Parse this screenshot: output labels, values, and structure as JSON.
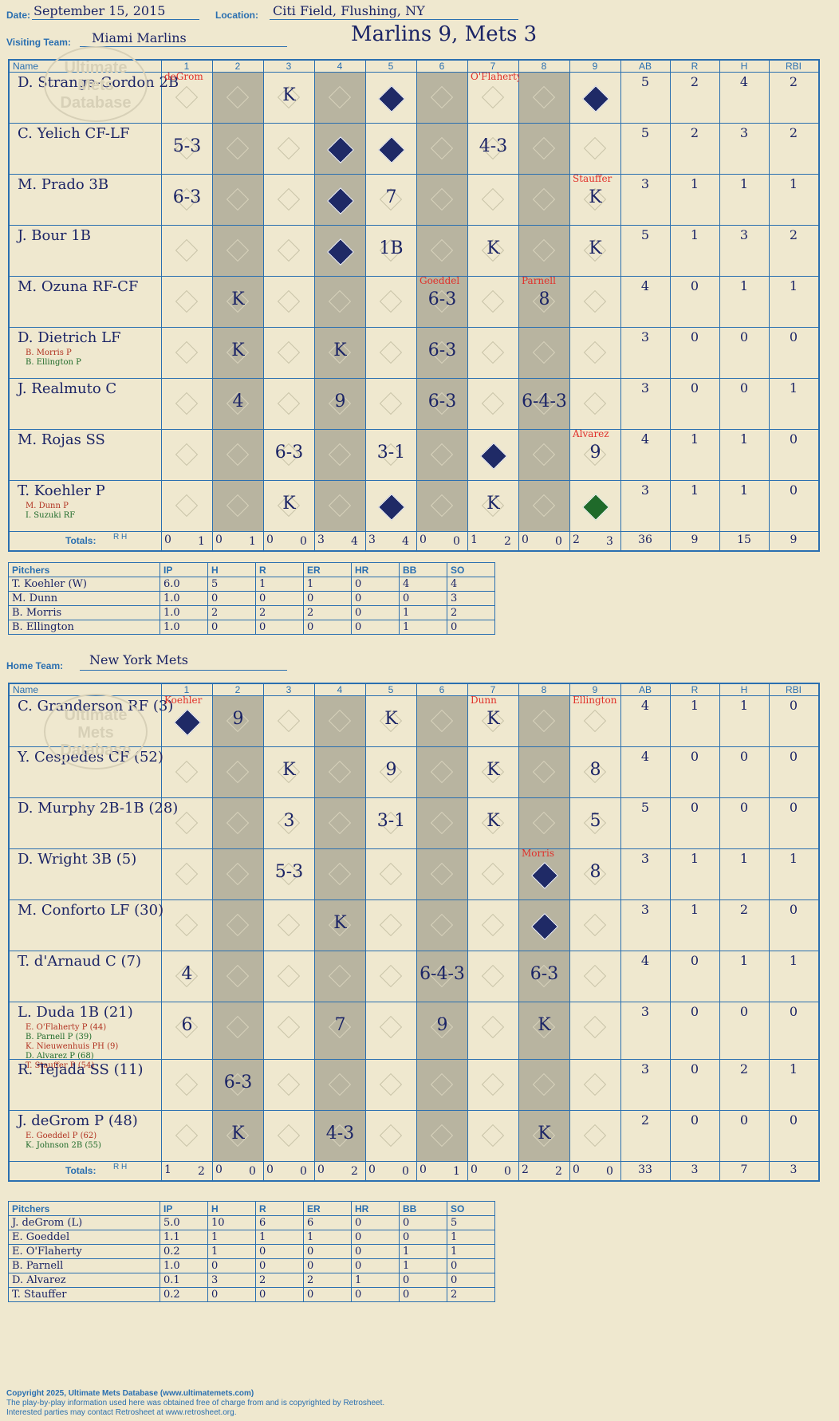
{
  "header": {
    "date_label": "Date:",
    "date": "September 15, 2015",
    "location_label": "Location:",
    "location": "Citi Field, Flushing, NY",
    "visiting_label": "Visiting Team:",
    "visiting": "Miami Marlins",
    "title": "Marlins 9, Mets 3",
    "home_label": "Home Team:",
    "home": "New York Mets"
  },
  "colhdr": {
    "name": "Name",
    "innings": [
      "1",
      "2",
      "3",
      "4",
      "5",
      "6",
      "7",
      "8",
      "9"
    ],
    "ab": "AB",
    "r": "R",
    "h": "H",
    "rbi": "RBI"
  },
  "totals_label": "Totals:",
  "rh": "R H",
  "visitors": {
    "players": [
      {
        "name": "D. Strange-Gordon 2B",
        "subs": [],
        "ab": "5",
        "r": "2",
        "h": "4",
        "rbi": "2"
      },
      {
        "name": "C. Yelich CF-LF",
        "subs": [],
        "ab": "5",
        "r": "2",
        "h": "3",
        "rbi": "2"
      },
      {
        "name": "M. Prado 3B",
        "subs": [],
        "ab": "3",
        "r": "1",
        "h": "1",
        "rbi": "1"
      },
      {
        "name": "J. Bour 1B",
        "subs": [],
        "ab": "5",
        "r": "1",
        "h": "3",
        "rbi": "2"
      },
      {
        "name": "M. Ozuna RF-CF",
        "subs": [],
        "ab": "4",
        "r": "0",
        "h": "1",
        "rbi": "1"
      },
      {
        "name": "D. Dietrich LF",
        "subs": [
          "B. Morris P",
          "B. Ellington P"
        ],
        "ab": "3",
        "r": "0",
        "h": "0",
        "rbi": "0"
      },
      {
        "name": "J. Realmuto C",
        "subs": [],
        "ab": "3",
        "r": "0",
        "h": "0",
        "rbi": "1"
      },
      {
        "name": "M. Rojas SS",
        "subs": [],
        "ab": "4",
        "r": "1",
        "h": "1",
        "rbi": "0"
      },
      {
        "name": "T. Koehler P",
        "subs": [
          "M. Dunn P",
          "I. Suzuki RF"
        ],
        "ab": "3",
        "r": "1",
        "h": "1",
        "rbi": "0"
      }
    ],
    "totals": {
      "innings": [
        [
          "0",
          "1"
        ],
        [
          "0",
          "1"
        ],
        [
          "0",
          "0"
        ],
        [
          "3",
          "4"
        ],
        [
          "3",
          "4"
        ],
        [
          "0",
          "0"
        ],
        [
          "1",
          "2"
        ],
        [
          "0",
          "0"
        ],
        [
          "2",
          "3"
        ]
      ],
      "ab": "36",
      "r": "9",
      "h": "15",
      "rbi": "9"
    }
  },
  "home_team": {
    "players": [
      {
        "name": "C. Granderson RF (3)",
        "subs": [],
        "ab": "4",
        "r": "1",
        "h": "1",
        "rbi": "0"
      },
      {
        "name": "Y. Cespedes CF (52)",
        "subs": [],
        "ab": "4",
        "r": "0",
        "h": "0",
        "rbi": "0"
      },
      {
        "name": "D. Murphy 2B-1B (28)",
        "subs": [],
        "ab": "5",
        "r": "0",
        "h": "0",
        "rbi": "0"
      },
      {
        "name": "D. Wright 3B (5)",
        "subs": [],
        "ab": "3",
        "r": "1",
        "h": "1",
        "rbi": "1"
      },
      {
        "name": "M. Conforto LF (30)",
        "subs": [],
        "ab": "3",
        "r": "1",
        "h": "2",
        "rbi": "0"
      },
      {
        "name": "T. d'Arnaud C (7)",
        "subs": [],
        "ab": "4",
        "r": "0",
        "h": "1",
        "rbi": "1"
      },
      {
        "name": "L. Duda 1B (21)",
        "subs": [
          "E. O'Flaherty P (44)",
          "B. Parnell P (39)",
          "K. Nieuwenhuis PH (9)",
          "D. Alvarez P (68)",
          "T. Stauffer P (54)"
        ],
        "ab": "3",
        "r": "0",
        "h": "0",
        "rbi": "0"
      },
      {
        "name": "R. Tejada SS (11)",
        "subs": [],
        "ab": "3",
        "r": "0",
        "h": "2",
        "rbi": "1"
      },
      {
        "name": "J. deGrom P (48)",
        "subs": [
          "E. Goeddel P (62)",
          "K. Johnson 2B (55)"
        ],
        "ab": "2",
        "r": "0",
        "h": "0",
        "rbi": "0"
      }
    ],
    "totals": {
      "innings": [
        [
          "1",
          "2"
        ],
        [
          "0",
          "0"
        ],
        [
          "0",
          "0"
        ],
        [
          "0",
          "2"
        ],
        [
          "0",
          "0"
        ],
        [
          "0",
          "1"
        ],
        [
          "0",
          "0"
        ],
        [
          "2",
          "2"
        ],
        [
          "0",
          "0"
        ]
      ],
      "ab": "33",
      "r": "3",
      "h": "7",
      "rbi": "3"
    }
  },
  "pitch_hdr": [
    "Pitchers",
    "IP",
    "H",
    "R",
    "ER",
    "HR",
    "BB",
    "SO"
  ],
  "v_pitchers": [
    [
      "T. Koehler (W)",
      "6.0",
      "5",
      "1",
      "1",
      "0",
      "4",
      "4"
    ],
    [
      "M. Dunn",
      "1.0",
      "0",
      "0",
      "0",
      "0",
      "0",
      "3"
    ],
    [
      "B. Morris",
      "1.0",
      "2",
      "2",
      "2",
      "0",
      "1",
      "2"
    ],
    [
      "B. Ellington",
      "1.0",
      "0",
      "0",
      "0",
      "0",
      "1",
      "0"
    ]
  ],
  "h_pitchers": [
    [
      "J. deGrom (L)",
      "5.0",
      "10",
      "6",
      "6",
      "0",
      "0",
      "5"
    ],
    [
      "E. Goeddel",
      "1.1",
      "1",
      "1",
      "1",
      "0",
      "0",
      "1"
    ],
    [
      "E. O'Flaherty",
      "0.2",
      "1",
      "0",
      "0",
      "0",
      "1",
      "1"
    ],
    [
      "B. Parnell",
      "1.0",
      "0",
      "0",
      "0",
      "0",
      "1",
      "0"
    ],
    [
      "D. Alvarez",
      "0.1",
      "3",
      "2",
      "2",
      "1",
      "0",
      "0"
    ],
    [
      "T. Stauffer",
      "0.2",
      "0",
      "0",
      "0",
      "0",
      "0",
      "2"
    ]
  ],
  "v_plays": [
    [
      "",
      "",
      "K",
      "",
      "",
      "",
      "",
      "",
      ""
    ],
    [
      "5-3",
      "",
      "",
      "",
      "",
      "",
      "4-3",
      "",
      ""
    ],
    [
      "6-3",
      "",
      "",
      "",
      "7",
      "",
      "",
      "",
      "K"
    ],
    [
      "",
      "",
      "",
      "",
      "1B",
      "",
      "K",
      "",
      "K"
    ],
    [
      "",
      "K",
      "",
      "",
      "",
      "6-3",
      "",
      "8",
      ""
    ],
    [
      "",
      "K",
      "",
      "K",
      "",
      "6-3",
      "",
      "",
      ""
    ],
    [
      "",
      "4",
      "",
      "9",
      "",
      "6-3",
      "",
      "6-4-3",
      ""
    ],
    [
      "",
      "",
      "6-3",
      "",
      "3-1",
      "",
      "",
      "",
      "9"
    ],
    [
      "",
      "",
      "K",
      "",
      "",
      "",
      "K",
      "",
      ""
    ]
  ],
  "h_plays": [
    [
      "",
      "9",
      "",
      "",
      "K",
      "",
      "K",
      "",
      ""
    ],
    [
      "",
      "",
      "K",
      "",
      "9",
      "",
      "K",
      "",
      "8"
    ],
    [
      "",
      "",
      "3",
      "",
      "3-1",
      "",
      "K",
      "",
      "5"
    ],
    [
      "",
      "",
      "5-3",
      "",
      "",
      "",
      "",
      "",
      "8"
    ],
    [
      "",
      "",
      "",
      "K",
      "",
      "",
      "",
      "",
      ""
    ],
    [
      "4",
      "",
      "",
      "",
      "",
      "6-4-3",
      "",
      "6-3",
      ""
    ],
    [
      "6",
      "",
      "",
      "7",
      "",
      "9",
      "",
      "K",
      ""
    ],
    [
      "",
      "6-3",
      "",
      "",
      "",
      "",
      "",
      "",
      ""
    ],
    [
      "",
      "K",
      "",
      "4-3",
      "",
      "",
      "",
      "K",
      ""
    ]
  ],
  "runners_v": [
    [
      0,
      4
    ],
    [
      0,
      8
    ],
    [
      1,
      3
    ],
    [
      1,
      4
    ],
    [
      2,
      3
    ],
    [
      3,
      3
    ],
    [
      7,
      6
    ],
    [
      8,
      4
    ]
  ],
  "runners_v_green": [
    [
      8,
      8
    ]
  ],
  "runners_h": [
    [
      0,
      0
    ],
    [
      3,
      7
    ],
    [
      4,
      7
    ]
  ],
  "v_notes": {
    "0-0": "deGrom",
    "0-6": "O'Flaherty",
    "2-8": "Stauffer",
    "4-5": "Goeddel",
    "4-7": "Parnell",
    "7-8": "Alvarez"
  },
  "h_notes": {
    "0-0": "Koehler",
    "0-6": "Dunn",
    "0-8": "Ellington",
    "3-7": "Morris"
  },
  "copyright": [
    "Copyright 2025, Ultimate Mets Database (www.ultimatemets.com)",
    "The play-by-play information used here was obtained free of charge from and is copyrighted by Retrosheet.",
    "Interested parties may contact Retrosheet at www.retrosheet.org."
  ],
  "logo": "Ultimate Mets Database",
  "colors": {
    "ink": "#1b2466",
    "grid": "#2a6fb0",
    "paper": "#efe8cf",
    "shade": "#b8b4a0",
    "red": "#e0302a"
  }
}
